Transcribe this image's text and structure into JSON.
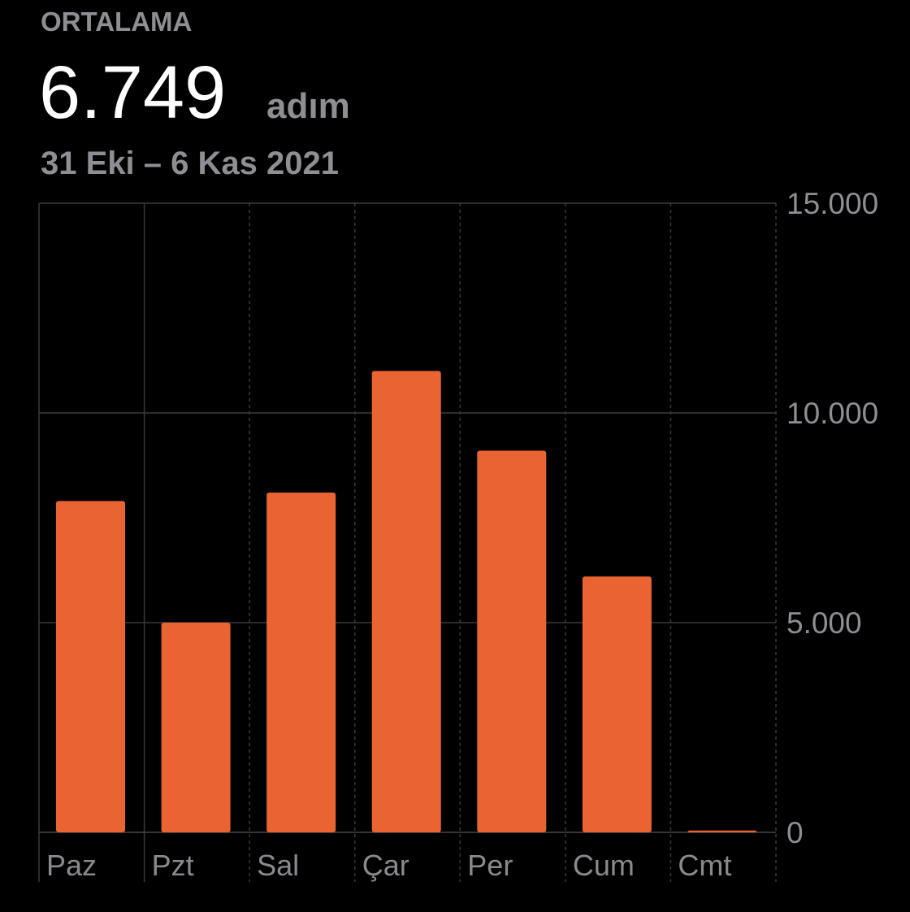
{
  "header": {
    "label": "ORTALAMA",
    "value": "6.749",
    "unit": "adım",
    "date_range": "31 Eki – 6 Kas 2021"
  },
  "chart_data": {
    "type": "bar",
    "categories": [
      "Paz",
      "Pzt",
      "Sal",
      "Çar",
      "Per",
      "Cum",
      "Cmt"
    ],
    "values": [
      7900,
      5000,
      8100,
      11000,
      9100,
      6100,
      43
    ],
    "color": "#ea6433",
    "ylim": [
      0,
      15000
    ],
    "yticks": [
      0,
      {
        "value": 5000,
        "label": "5.000"
      },
      {
        "value": 10000,
        "label": "10.000"
      },
      {
        "value": 15000,
        "label": "15.000"
      }
    ],
    "grid": true
  }
}
